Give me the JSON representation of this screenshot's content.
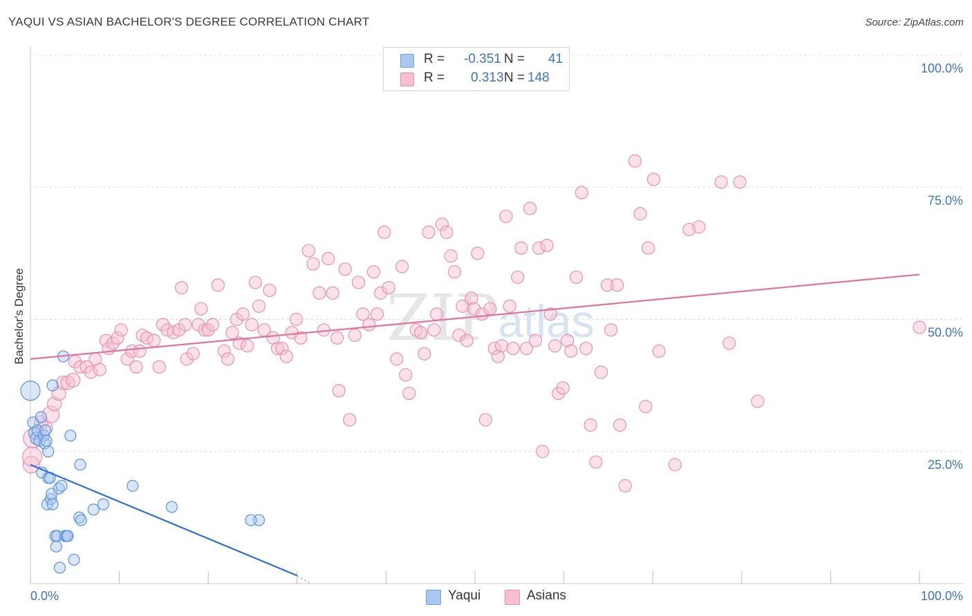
{
  "header": {
    "title": "YAQUI VS ASIAN BACHELOR'S DEGREE CORRELATION CHART",
    "source": "Source: ZipAtlas.com"
  },
  "watermark": {
    "zip": "ZIP",
    "atlas": "atlas"
  },
  "legend": {
    "rows": [
      {
        "r_label": "R =",
        "r_value": "-0.351",
        "n_label": "N =",
        "n_value": "41",
        "color": "#a9c8f0",
        "border": "#6fa0e0"
      },
      {
        "r_label": "R =",
        "r_value": "0.313",
        "n_label": "N =",
        "n_value": "148",
        "color": "#f7bfd0",
        "border": "#ea8db0"
      }
    ]
  },
  "bottom_legend": [
    {
      "label": "Yaqui",
      "color": "#a9c8f0",
      "border": "#6fa0e0"
    },
    {
      "label": "Asians",
      "color": "#f7bfd0",
      "border": "#ea8db0"
    }
  ],
  "chart_data": {
    "type": "scatter",
    "title": "YAQUI VS ASIAN BACHELOR'S DEGREE CORRELATION CHART",
    "xlabel": "",
    "ylabel": "Bachelor's Degree",
    "xlim": [
      0,
      100
    ],
    "ylim": [
      0,
      100
    ],
    "x_tick_labels": [
      "0.0%",
      "100.0%"
    ],
    "y_tick_labels": [
      "25.0%",
      "50.0%",
      "75.0%",
      "100.0%"
    ],
    "y_ticks": [
      25,
      50,
      75,
      100
    ],
    "grid": true,
    "legend_position": "top-center",
    "colors": {
      "yaqui": "#2a6fd6",
      "asians": "#e2729b"
    },
    "series": [
      {
        "name": "Yaqui",
        "trend": {
          "x": [
            0,
            30
          ],
          "y": [
            22.5,
            1.5
          ]
        },
        "points": [
          [
            0.0,
            36.5,
            14
          ],
          [
            0.3,
            30.5,
            8
          ],
          [
            0.5,
            28.5,
            9
          ],
          [
            0.7,
            27.5,
            9
          ],
          [
            0.8,
            29,
            8
          ],
          [
            1.0,
            27,
            8
          ],
          [
            1.2,
            31.5,
            8
          ],
          [
            1.3,
            21,
            8
          ],
          [
            1.5,
            28,
            8
          ],
          [
            1.6,
            26.5,
            8
          ],
          [
            1.7,
            29,
            8
          ],
          [
            1.8,
            27,
            8
          ],
          [
            1.9,
            15,
            8
          ],
          [
            2.0,
            25,
            8
          ],
          [
            2.0,
            20,
            8
          ],
          [
            2.2,
            20,
            8
          ],
          [
            2.3,
            16,
            8
          ],
          [
            2.4,
            17,
            8
          ],
          [
            2.5,
            15,
            8
          ],
          [
            2.5,
            37.5,
            8
          ],
          [
            2.8,
            9,
            8
          ],
          [
            2.9,
            7,
            8
          ],
          [
            3.0,
            9,
            8
          ],
          [
            3.2,
            18,
            8
          ],
          [
            3.3,
            3,
            8
          ],
          [
            3.5,
            18.5,
            8
          ],
          [
            3.7,
            43,
            8
          ],
          [
            3.9,
            9,
            8
          ],
          [
            4.1,
            9,
            8
          ],
          [
            4.2,
            9,
            8
          ],
          [
            4.5,
            28,
            8
          ],
          [
            4.9,
            4.5,
            8
          ],
          [
            5.5,
            12.5,
            8
          ],
          [
            5.6,
            22.5,
            8
          ],
          [
            5.7,
            12,
            8
          ],
          [
            7.1,
            14,
            8
          ],
          [
            8.2,
            15,
            8
          ],
          [
            11.5,
            18.5,
            8
          ],
          [
            15.9,
            14.5,
            8
          ],
          [
            25.7,
            12,
            8
          ],
          [
            24.8,
            12,
            8
          ]
        ]
      },
      {
        "name": "Asians",
        "trend": {
          "x": [
            0,
            100
          ],
          "y": [
            42.5,
            58.5
          ]
        },
        "points": [
          [
            0.1,
            22.5,
            12
          ],
          [
            0.2,
            24,
            14
          ],
          [
            0.3,
            27.5,
            14
          ],
          [
            1.2,
            30.5,
            10
          ],
          [
            1.7,
            29.5,
            10
          ],
          [
            2.3,
            32,
            12
          ],
          [
            2.7,
            34,
            10
          ],
          [
            3.2,
            36,
            10
          ],
          [
            3.7,
            38,
            10
          ],
          [
            4.2,
            38,
            10
          ],
          [
            4.8,
            38.5,
            10
          ],
          [
            5.0,
            42,
            9
          ],
          [
            5.6,
            41,
            9
          ],
          [
            6.3,
            41,
            9
          ],
          [
            6.8,
            40,
            9
          ],
          [
            7.3,
            42.5,
            9
          ],
          [
            7.8,
            40.5,
            9
          ],
          [
            8.5,
            46,
            9
          ],
          [
            8.8,
            44.5,
            9
          ],
          [
            9.3,
            45.5,
            9
          ],
          [
            9.8,
            46.5,
            9
          ],
          [
            10.2,
            48,
            9
          ],
          [
            10.9,
            42.5,
            9
          ],
          [
            11.4,
            44,
            9
          ],
          [
            11.9,
            41,
            9
          ],
          [
            12.3,
            44,
            9
          ],
          [
            12.6,
            47,
            9
          ],
          [
            13.1,
            46.5,
            9
          ],
          [
            13.9,
            46,
            9
          ],
          [
            14.5,
            41,
            9
          ],
          [
            14.9,
            49,
            9
          ],
          [
            15.4,
            48,
            9
          ],
          [
            16.1,
            47.5,
            9
          ],
          [
            16.7,
            48,
            9
          ],
          [
            17.0,
            56,
            9
          ],
          [
            17.4,
            49,
            9
          ],
          [
            17.6,
            42.5,
            9
          ],
          [
            18.3,
            43.5,
            9
          ],
          [
            18.9,
            49,
            9
          ],
          [
            19.2,
            52,
            9
          ],
          [
            19.6,
            48,
            9
          ],
          [
            20.0,
            48,
            9
          ],
          [
            20.5,
            49,
            9
          ],
          [
            21.1,
            56.5,
            9
          ],
          [
            21.8,
            44,
            9
          ],
          [
            22.2,
            42.5,
            9
          ],
          [
            22.7,
            47.5,
            9
          ],
          [
            23.2,
            50,
            9
          ],
          [
            23.5,
            45.5,
            9
          ],
          [
            23.9,
            51,
            9
          ],
          [
            24.4,
            45,
            9
          ],
          [
            24.9,
            49,
            9
          ],
          [
            25.3,
            57,
            9
          ],
          [
            25.7,
            52.5,
            9
          ],
          [
            26.3,
            48,
            9
          ],
          [
            26.9,
            55.5,
            9
          ],
          [
            27.3,
            46.5,
            9
          ],
          [
            27.8,
            44.5,
            9
          ],
          [
            28.3,
            44.5,
            9
          ],
          [
            28.8,
            43,
            9
          ],
          [
            29.4,
            47.5,
            9
          ],
          [
            29.9,
            50,
            9
          ],
          [
            30.4,
            46.5,
            9
          ],
          [
            31.3,
            63,
            9
          ],
          [
            31.8,
            60.5,
            9
          ],
          [
            32.5,
            55,
            9
          ],
          [
            33.0,
            48,
            9
          ],
          [
            33.5,
            61.5,
            9
          ],
          [
            34.0,
            55,
            9
          ],
          [
            34.5,
            46.5,
            9
          ],
          [
            34.7,
            36.5,
            9
          ],
          [
            35.4,
            59.5,
            9
          ],
          [
            35.9,
            31,
            9
          ],
          [
            36.5,
            47,
            9
          ],
          [
            36.9,
            57,
            9
          ],
          [
            37.4,
            51,
            9
          ],
          [
            38.1,
            49,
            9
          ],
          [
            38.6,
            59,
            9
          ],
          [
            39.0,
            51,
            9
          ],
          [
            39.4,
            55,
            9
          ],
          [
            39.8,
            66.5,
            9
          ],
          [
            40.3,
            56,
            9
          ],
          [
            41.2,
            42.5,
            9
          ],
          [
            41.8,
            60,
            9
          ],
          [
            42.2,
            39.5,
            9
          ],
          [
            42.6,
            36,
            9
          ],
          [
            43.4,
            48,
            9
          ],
          [
            43.9,
            47.5,
            9
          ],
          [
            44.3,
            43.5,
            9
          ],
          [
            44.8,
            66.5,
            9
          ],
          [
            45.4,
            48,
            9
          ],
          [
            45.7,
            51,
            9
          ],
          [
            46.3,
            68,
            9
          ],
          [
            46.8,
            66.5,
            9
          ],
          [
            47.3,
            62,
            9
          ],
          [
            47.7,
            59,
            9
          ],
          [
            48.2,
            47,
            9
          ],
          [
            48.6,
            52.5,
            9
          ],
          [
            49.1,
            46,
            9
          ],
          [
            49.6,
            54,
            9
          ],
          [
            49.9,
            52,
            9
          ],
          [
            50.3,
            62.5,
            9
          ],
          [
            50.8,
            51,
            9
          ],
          [
            51.2,
            31,
            9
          ],
          [
            51.7,
            52,
            9
          ],
          [
            52.2,
            44.5,
            9
          ],
          [
            52.6,
            43,
            9
          ],
          [
            53.0,
            45,
            9
          ],
          [
            53.5,
            69.5,
            9
          ],
          [
            53.9,
            52.5,
            9
          ],
          [
            54.3,
            44.5,
            9
          ],
          [
            54.8,
            58,
            9
          ],
          [
            55.2,
            63.5,
            9
          ],
          [
            55.8,
            44.5,
            9
          ],
          [
            56.2,
            71,
            9
          ],
          [
            56.8,
            46,
            9
          ],
          [
            57.2,
            63.5,
            9
          ],
          [
            57.6,
            25,
            9
          ],
          [
            58.1,
            64,
            9
          ],
          [
            58.5,
            51,
            9
          ],
          [
            59.0,
            45,
            9
          ],
          [
            59.4,
            36,
            9
          ],
          [
            59.9,
            37,
            9
          ],
          [
            60.4,
            46,
            9
          ],
          [
            60.8,
            44,
            9
          ],
          [
            61.4,
            58,
            9
          ],
          [
            62.0,
            74,
            9
          ],
          [
            62.5,
            44.5,
            9
          ],
          [
            63.0,
            30,
            9
          ],
          [
            63.6,
            23,
            9
          ],
          [
            64.2,
            40,
            9
          ],
          [
            64.9,
            56.5,
            9
          ],
          [
            65.3,
            48,
            9
          ],
          [
            66.0,
            56.5,
            9
          ],
          [
            66.3,
            30,
            9
          ],
          [
            66.9,
            18.5,
            9
          ],
          [
            68.0,
            80,
            9
          ],
          [
            68.6,
            70,
            9
          ],
          [
            69.2,
            33.5,
            9
          ],
          [
            69.5,
            63.5,
            9
          ],
          [
            70.1,
            76.5,
            9
          ],
          [
            70.7,
            44,
            9
          ],
          [
            72.5,
            22.5,
            9
          ],
          [
            74.1,
            67,
            9
          ],
          [
            75.2,
            67.5,
            9
          ],
          [
            77.7,
            76,
            9
          ],
          [
            78.6,
            45.5,
            9
          ],
          [
            79.8,
            76,
            9
          ],
          [
            81.8,
            34.5,
            9
          ],
          [
            100,
            48.5,
            9
          ]
        ]
      }
    ]
  }
}
